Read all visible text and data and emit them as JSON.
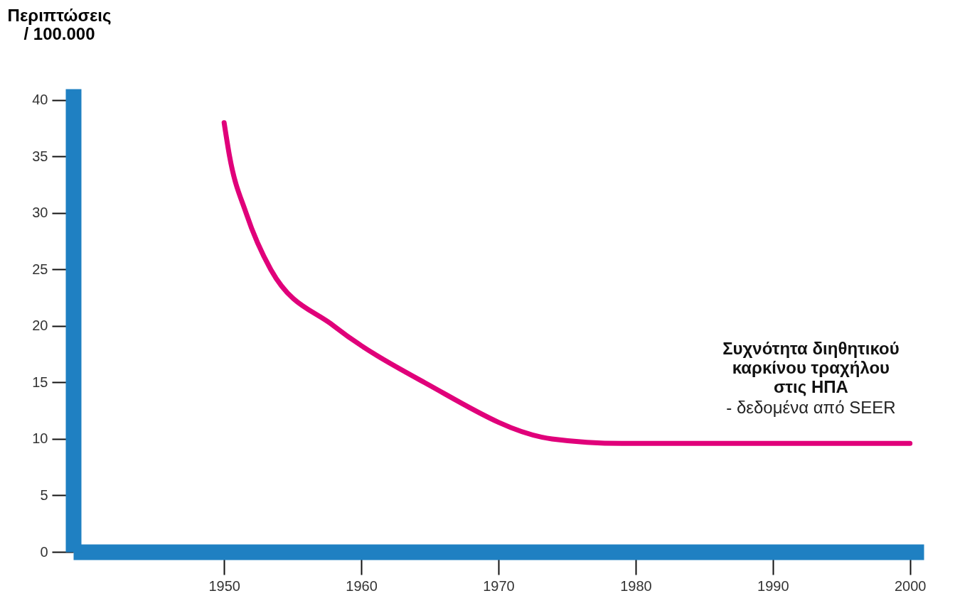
{
  "chart_data": {
    "type": "line",
    "title": "Συχνότητα διηθητικού\nκαρκίνου τραχήλου\nστις ΗΠΑ",
    "subtitle": "- δεδομένα από SEER",
    "ylabel": "Περιπτώσεις\n/ 100.000",
    "x": [
      1950,
      1950.4,
      1951.6,
      1953.4,
      1958.0,
      1964.6,
      1973.9,
      1979.0,
      2000
    ],
    "series": [
      {
        "color": "#e0007a",
        "values": [
          38,
          35,
          30,
          25,
          20,
          15,
          10,
          9.6,
          9.6
        ]
      }
    ],
    "xlim": [
      1939,
      2001
    ],
    "ylim": [
      0,
      41
    ],
    "xticks": [
      1950,
      1960,
      1970,
      1980,
      1990,
      2000
    ],
    "yticks": [
      0,
      5,
      10,
      15,
      20,
      25,
      30,
      35,
      40
    ],
    "grid": false,
    "marker": "none",
    "line_style": "solid"
  }
}
